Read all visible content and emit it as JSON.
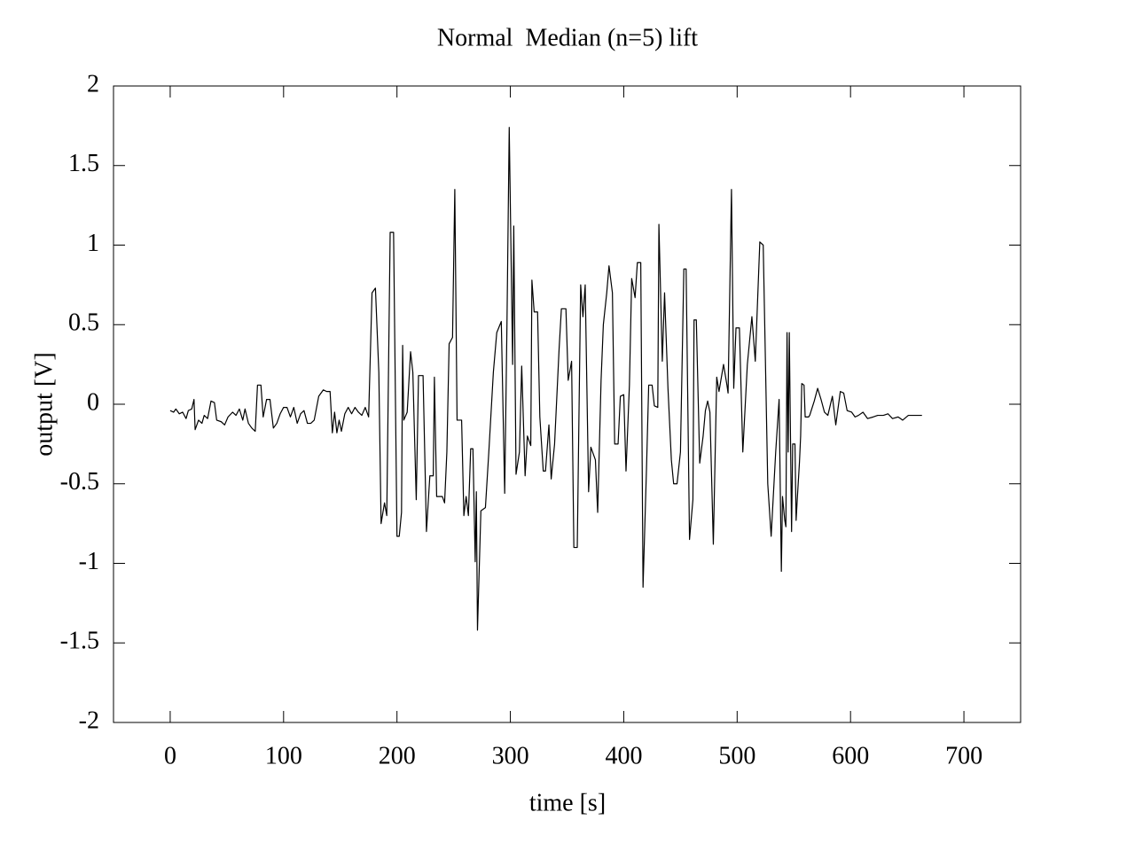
{
  "chart_data": {
    "type": "line",
    "title": "Normal  Median (n=5) lift",
    "x_label": "time [s]",
    "y_label": "output [V]",
    "color": "#000000",
    "x": [
      0,
      3,
      5,
      8,
      11,
      14,
      16,
      19,
      21,
      22,
      25,
      28,
      30,
      33,
      36,
      39,
      41,
      45,
      48,
      51,
      55,
      58,
      61,
      64,
      66,
      69,
      72,
      75,
      77,
      80,
      82,
      85,
      88,
      91,
      94,
      97,
      100,
      103,
      106,
      109,
      112,
      115,
      118,
      121,
      124,
      127,
      131,
      135,
      138,
      141,
      143,
      145,
      147,
      149,
      151,
      154,
      157,
      160,
      163,
      166,
      169,
      172,
      175,
      178,
      181,
      184,
      186,
      189,
      191,
      194,
      197,
      200,
      202,
      204,
      205,
      206,
      209,
      212,
      214,
      217,
      219,
      223,
      226,
      229,
      232,
      233,
      235,
      240,
      242,
      244,
      246,
      249,
      251,
      253,
      257,
      259,
      261,
      263,
      265,
      267,
      269,
      270,
      271,
      274,
      278,
      281,
      285,
      288,
      292,
      295,
      297,
      299,
      302,
      303,
      305,
      308,
      310,
      313,
      315,
      318,
      319,
      321,
      324,
      326,
      329,
      331,
      334,
      336,
      339,
      343,
      345,
      349,
      351,
      354,
      356,
      359,
      362,
      364,
      366,
      369,
      371,
      375,
      377,
      380,
      382,
      385,
      387,
      390,
      392,
      395,
      397,
      400,
      402,
      405,
      407,
      410,
      412,
      415,
      417,
      420,
      422,
      425,
      427,
      430,
      431,
      434,
      436,
      439,
      442,
      444,
      447,
      450,
      453,
      455,
      458,
      461,
      462,
      464,
      467,
      470,
      472,
      474,
      476,
      479,
      482,
      484,
      488,
      491,
      492,
      495,
      497,
      499,
      502,
      505,
      509,
      513,
      516,
      520,
      523,
      527,
      530,
      534,
      537,
      539,
      540,
      542,
      543,
      544,
      545,
      546,
      548,
      549,
      551,
      552,
      553,
      555,
      556,
      557,
      559,
      560,
      562,
      563,
      564,
      568,
      571,
      574,
      577,
      580,
      584,
      587,
      591,
      594,
      597,
      601,
      604,
      607,
      611,
      615,
      620,
      624,
      629,
      633,
      637,
      642,
      646,
      651,
      657,
      663
    ],
    "values": [
      -0.04,
      -0.05,
      -0.03,
      -0.06,
      -0.05,
      -0.09,
      -0.04,
      -0.03,
      0.03,
      -0.16,
      -0.1,
      -0.12,
      -0.07,
      -0.09,
      0.02,
      0.01,
      -0.1,
      -0.11,
      -0.13,
      -0.08,
      -0.05,
      -0.07,
      -0.03,
      -0.1,
      -0.03,
      -0.12,
      -0.15,
      -0.17,
      0.12,
      0.12,
      -0.08,
      0.03,
      0.03,
      -0.15,
      -0.12,
      -0.06,
      -0.02,
      -0.02,
      -0.08,
      -0.02,
      -0.12,
      -0.06,
      -0.04,
      -0.12,
      -0.12,
      -0.1,
      0.05,
      0.09,
      0.08,
      0.08,
      -0.18,
      -0.05,
      -0.18,
      -0.1,
      -0.17,
      -0.06,
      -0.02,
      -0.06,
      -0.02,
      -0.05,
      -0.07,
      -0.02,
      -0.08,
      0.7,
      0.73,
      0.2,
      -0.75,
      -0.62,
      -0.7,
      1.08,
      1.08,
      -0.83,
      -0.83,
      -0.68,
      0.37,
      -0.1,
      -0.05,
      0.33,
      0.2,
      -0.6,
      0.18,
      0.18,
      -0.8,
      -0.45,
      -0.45,
      0.17,
      -0.58,
      -0.58,
      -0.62,
      -0.3,
      0.38,
      0.42,
      1.35,
      -0.1,
      -0.1,
      -0.7,
      -0.58,
      -0.7,
      -0.28,
      -0.28,
      -0.99,
      -0.55,
      -1.42,
      -0.67,
      -0.65,
      -0.3,
      0.2,
      0.45,
      0.52,
      -0.56,
      0.5,
      1.74,
      0.25,
      1.12,
      -0.44,
      -0.3,
      0.24,
      -0.45,
      -0.2,
      -0.26,
      0.78,
      0.58,
      0.58,
      -0.08,
      -0.42,
      -0.42,
      -0.13,
      -0.47,
      -0.25,
      0.35,
      0.6,
      0.6,
      0.15,
      0.27,
      -0.9,
      -0.9,
      0.75,
      0.55,
      0.75,
      -0.55,
      -0.27,
      -0.35,
      -0.68,
      0.15,
      0.5,
      0.7,
      0.87,
      0.7,
      -0.25,
      -0.25,
      0.05,
      0.06,
      -0.42,
      0.12,
      0.79,
      0.67,
      0.89,
      0.89,
      -1.15,
      -0.42,
      0.12,
      0.12,
      -0.01,
      -0.02,
      1.13,
      0.27,
      0.7,
      0.1,
      -0.35,
      -0.5,
      -0.5,
      -0.3,
      0.85,
      0.85,
      -0.85,
      -0.6,
      0.53,
      0.53,
      -0.37,
      -0.2,
      -0.04,
      0.02,
      -0.05,
      -0.88,
      0.17,
      0.08,
      0.25,
      0.12,
      0.07,
      1.35,
      0.1,
      0.48,
      0.48,
      -0.3,
      0.25,
      0.55,
      0.27,
      1.02,
      1.0,
      -0.5,
      -0.83,
      -0.3,
      0.03,
      -1.05,
      -0.58,
      -0.73,
      -0.77,
      0.45,
      -0.3,
      0.45,
      -0.8,
      -0.25,
      -0.25,
      -0.73,
      -0.6,
      -0.36,
      -0.2,
      0.13,
      0.12,
      -0.08,
      -0.08,
      -0.08,
      -0.07,
      0.02,
      0.1,
      0.03,
      -0.05,
      -0.07,
      0.05,
      -0.13,
      0.08,
      0.07,
      -0.04,
      -0.05,
      -0.08,
      -0.07,
      -0.05,
      -0.09,
      -0.08,
      -0.07,
      -0.07,
      -0.06,
      -0.09,
      -0.08,
      -0.1,
      -0.07,
      -0.07,
      -0.07
    ],
    "xlim": [
      -50,
      750
    ],
    "xticks": [
      0,
      100,
      200,
      300,
      400,
      500,
      600,
      700
    ],
    "ylim": [
      -2,
      2
    ],
    "yticks": [
      -2,
      -1.5,
      -1,
      -0.5,
      0,
      0.5,
      1,
      1.5,
      2
    ]
  }
}
